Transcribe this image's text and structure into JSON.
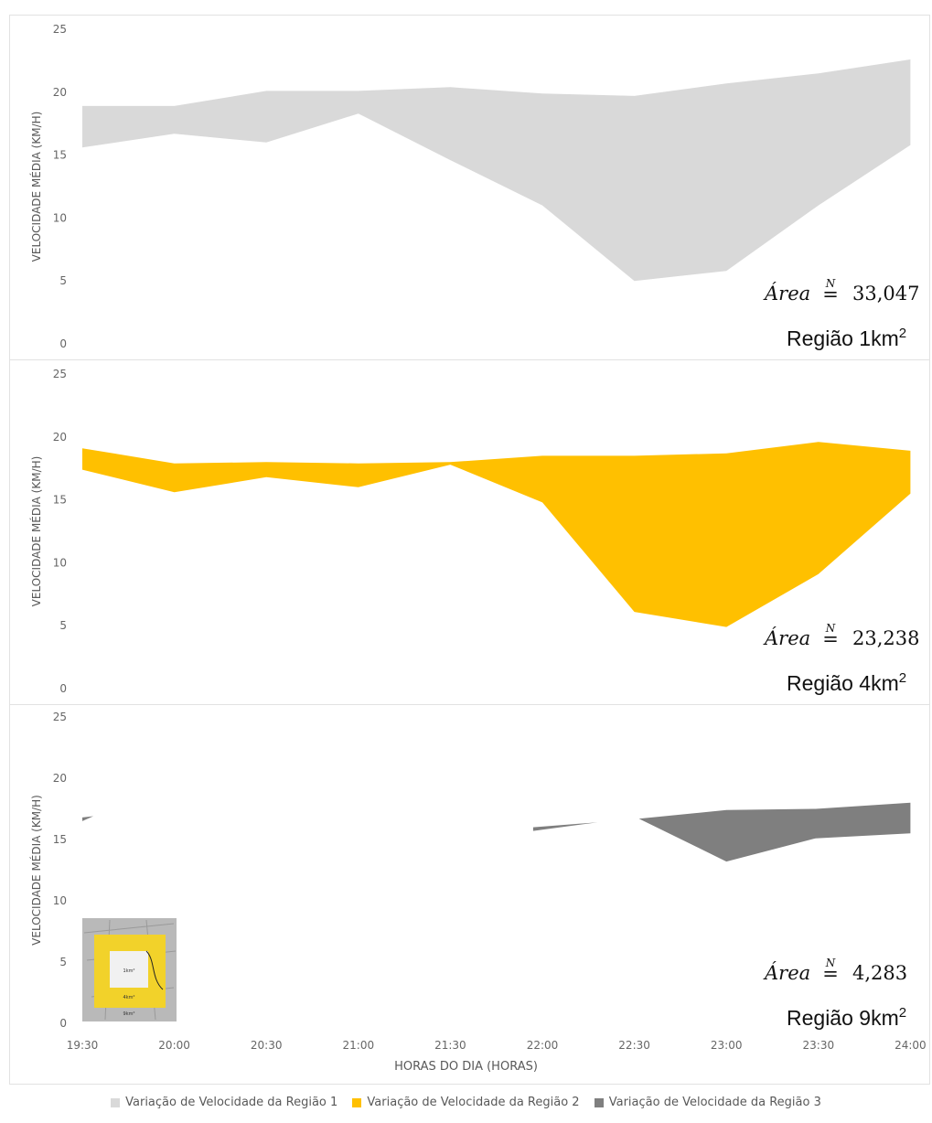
{
  "chart_data": [
    {
      "type": "area",
      "ylabel": "VELOCIDADE MÉDIA (KM/H)",
      "ylim": [
        0,
        25
      ],
      "yticks": [
        "0",
        "5",
        "10",
        "15",
        "20",
        "25"
      ],
      "series": [
        {
          "name": "Variação de Velocidade da Região 1",
          "color": "#d9d9d9",
          "x": [
            "19:30",
            "20:00",
            "20:30",
            "21:00",
            "21:30",
            "22:00",
            "22:30",
            "23:00",
            "23:30",
            "24:00"
          ],
          "upper": [
            18.9,
            18.9,
            20.1,
            20.1,
            20.4,
            19.9,
            19.7,
            20.7,
            21.5,
            22.6
          ],
          "lower": [
            15.6,
            16.7,
            16.0,
            18.3,
            14.6,
            11.0,
            5.0,
            5.8,
            11.0,
            15.8
          ]
        }
      ],
      "annotation": {
        "area_label": "Área",
        "symbol": "N",
        "value": "33,047",
        "region": "Região 1km",
        "sup": "2"
      }
    },
    {
      "type": "area",
      "ylabel": "VELOCIDADE MÉDIA (KM/H)",
      "ylim": [
        0,
        25
      ],
      "yticks": [
        "0",
        "5",
        "10",
        "15",
        "20",
        "25"
      ],
      "series": [
        {
          "name": "Variação de Velocidade da Região 2",
          "color": "#ffc000",
          "x": [
            "19:30",
            "20:00",
            "20:30",
            "21:00",
            "21:30",
            "22:00",
            "22:30",
            "23:00",
            "23:30",
            "24:00"
          ],
          "upper": [
            19.1,
            17.9,
            18.0,
            17.9,
            18.0,
            18.5,
            18.5,
            18.7,
            19.6,
            18.9
          ],
          "lower": [
            17.4,
            15.6,
            16.8,
            16.0,
            17.8,
            14.8,
            6.1,
            4.9,
            9.1,
            15.5
          ]
        }
      ],
      "annotation": {
        "area_label": "Área",
        "symbol": "N",
        "value": "23,238",
        "region": "Região 4km",
        "sup": "2"
      }
    },
    {
      "type": "area",
      "ylabel": "VELOCIDADE MÉDIA (KM/H)",
      "xlabel": "HORAS DO DIA (HORAS)",
      "ylim": [
        0,
        25
      ],
      "yticks": [
        "0",
        "5",
        "10",
        "15",
        "20",
        "25"
      ],
      "categories": [
        "19:30",
        "20:00",
        "20:30",
        "21:00",
        "21:30",
        "22:00",
        "22:30",
        "23:00",
        "23:30",
        "24:00"
      ],
      "series": [
        {
          "name": "Variação de Velocidade da Região 3",
          "color": "#7f7f7f",
          "segments": [
            {
              "x": [
                0.0,
                0.12
              ],
              "upper": [
                16.8,
                16.9
              ],
              "lower": [
                16.5,
                16.9
              ]
            },
            {
              "x": [
                4.9,
                5.6
              ],
              "upper": [
                16.0,
                16.4
              ],
              "lower": [
                15.7,
                16.4
              ]
            },
            {
              "x": [
                6.05,
                7.0,
                7.97,
                9.0
              ],
              "upper": [
                16.7,
                17.4,
                17.5,
                18.0
              ],
              "lower": [
                16.7,
                13.2,
                15.1,
                15.5
              ]
            }
          ]
        }
      ],
      "annotation": {
        "area_label": "Área",
        "symbol": "N",
        "value": "4,283",
        "region": "Região 9km",
        "sup": "2"
      },
      "inset_labels": [
        "1km²",
        "4km²",
        "9km²"
      ]
    }
  ],
  "legend": [
    {
      "label": "Variação de Velocidade da Região 1",
      "color": "#d9d9d9"
    },
    {
      "label": "Variação de Velocidade da Região 2",
      "color": "#ffc000"
    },
    {
      "label": "Variação de Velocidade da Região 3",
      "color": "#7f7f7f"
    }
  ]
}
